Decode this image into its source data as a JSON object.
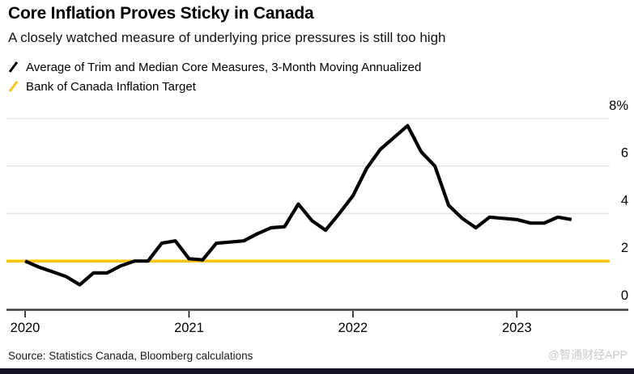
{
  "header": {
    "title": "Core Inflation Proves Sticky in Canada",
    "subtitle": "A closely watched measure of underlying price pressures is still too high"
  },
  "legend": {
    "items": [
      {
        "label": "Average of Trim and Median Core Measures, 3-Month Moving Annualized",
        "color": "#000000"
      },
      {
        "label": "Bank of Canada Inflation Target",
        "color": "#fcc514"
      }
    ]
  },
  "chart_data": {
    "type": "line",
    "title": "Core Inflation Proves Sticky in Canada",
    "xlabel": "",
    "ylabel": "",
    "ylim": [
      0,
      8
    ],
    "grid": "horizontal",
    "legend_position": "top-left",
    "x": [
      "2020-01",
      "2020-02",
      "2020-03",
      "2020-04",
      "2020-05",
      "2020-06",
      "2020-07",
      "2020-08",
      "2020-09",
      "2020-10",
      "2020-11",
      "2020-12",
      "2021-01",
      "2021-02",
      "2021-03",
      "2021-04",
      "2021-05",
      "2021-06",
      "2021-07",
      "2021-08",
      "2021-09",
      "2021-10",
      "2021-11",
      "2021-12",
      "2022-01",
      "2022-02",
      "2022-03",
      "2022-04",
      "2022-05",
      "2022-06",
      "2022-07",
      "2022-08",
      "2022-09",
      "2022-10",
      "2022-11",
      "2022-12",
      "2023-01",
      "2023-02",
      "2023-03",
      "2023-04",
      "2023-05"
    ],
    "series": [
      {
        "name": "Average of Trim and Median Core Measures, 3-Month Moving Annualized",
        "color": "#000000",
        "values": [
          2.0,
          1.75,
          1.55,
          1.35,
          1.0,
          1.5,
          1.5,
          1.8,
          2.0,
          2.0,
          2.75,
          2.85,
          2.1,
          2.05,
          2.75,
          2.8,
          2.85,
          3.15,
          3.4,
          3.45,
          4.4,
          3.7,
          3.3,
          4.0,
          4.75,
          5.9,
          6.7,
          7.2,
          7.7,
          6.6,
          6.0,
          4.35,
          3.8,
          3.4,
          3.85,
          3.8,
          3.75,
          3.6,
          3.6,
          3.85,
          3.75
        ]
      },
      {
        "name": "Bank of Canada Inflation Target",
        "color": "#fcc514",
        "type": "constant",
        "value": 2.0
      }
    ],
    "y_ticks": [
      {
        "value": 8,
        "label": "8%"
      },
      {
        "value": 6,
        "label": "6"
      },
      {
        "value": 4,
        "label": "4"
      },
      {
        "value": 2,
        "label": "2"
      },
      {
        "value": 0,
        "label": "0"
      }
    ],
    "x_ticks": [
      {
        "month_index": 0,
        "label": "2020"
      },
      {
        "month_index": 12,
        "label": "2021"
      },
      {
        "month_index": 24,
        "label": "2022"
      },
      {
        "month_index": 36,
        "label": "2023"
      }
    ]
  },
  "footer": {
    "source": "Source: Statistics Canada, Bloomberg calculations",
    "watermark": "@智通财经APP"
  }
}
